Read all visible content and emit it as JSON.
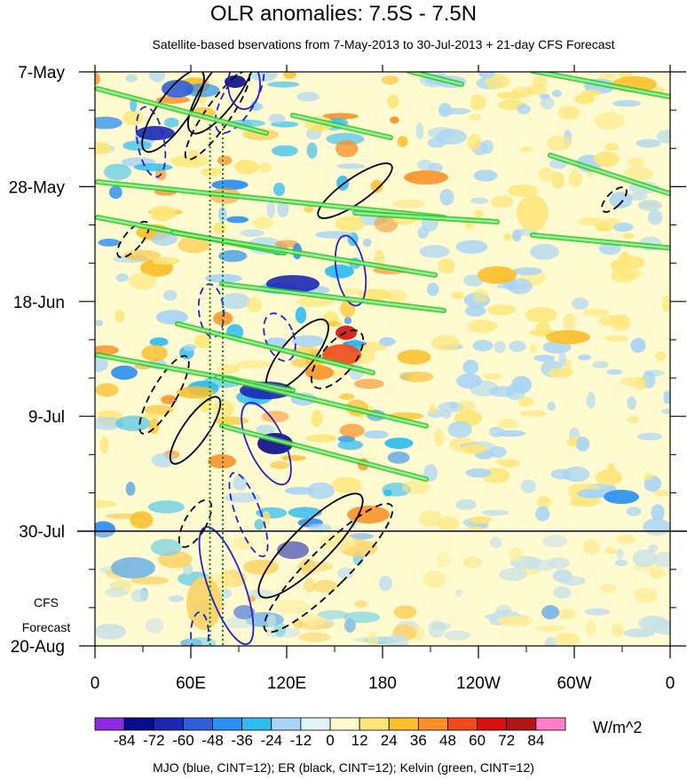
{
  "header": {
    "title": "OLR anomalies: 7.5S - 7.5N",
    "subtitle": "Satellite-based bservations from 7-May-2013 to 30-Jul-2013 + 21-day CFS Forecast"
  },
  "side_label": {
    "line1": "CFS",
    "line2": "Forecast"
  },
  "colorbar": {
    "units": "W/m^2",
    "levels": [
      -84,
      -72,
      -60,
      -48,
      -36,
      -24,
      -12,
      0,
      12,
      24,
      36,
      48,
      60,
      72,
      84
    ],
    "colors": [
      "#8a2be2",
      "#0a0a8c",
      "#1a28b4",
      "#2f5fd8",
      "#2a8ff0",
      "#2fbcf0",
      "#a8d4f5",
      "#e0f4f5",
      "#fffad0",
      "#fde67a",
      "#fbbf2b",
      "#f8912a",
      "#f04a1a",
      "#d41010",
      "#b01818",
      "#ff7ec8"
    ]
  },
  "footer": "MJO (blue, CINT=12); ER (black, CINT=12); Kelvin (green, CINT=12)",
  "chart_data": {
    "type": "heatmap",
    "title": "OLR anomalies: 7.5S - 7.5N",
    "xlabel": "",
    "ylabel": "",
    "x_ticks": [
      "0",
      "60E",
      "120E",
      "180",
      "120W",
      "60W",
      "0"
    ],
    "x_range": [
      0,
      360
    ],
    "y_ticks": [
      "7-May",
      "28-May",
      "18-Jun",
      "9-Jul",
      "30-Jul",
      "20-Aug"
    ],
    "y_range": [
      "7-May-2013",
      "20-Aug-2013"
    ],
    "observation_end": "30-Jul-2013",
    "forecast_days": 21,
    "vertical_reference_lines_lon": [
      72,
      80
    ],
    "colors": {
      "mjo": "#2222cc",
      "er": "#000000",
      "kelvin": "#22cc22",
      "reference_lines": "#118811"
    },
    "overlays": [
      {
        "name": "MJO",
        "color": "blue",
        "cint": 12
      },
      {
        "name": "ER",
        "color": "black",
        "cint": 12
      },
      {
        "name": "Kelvin",
        "color": "green",
        "cint": 12
      }
    ]
  }
}
